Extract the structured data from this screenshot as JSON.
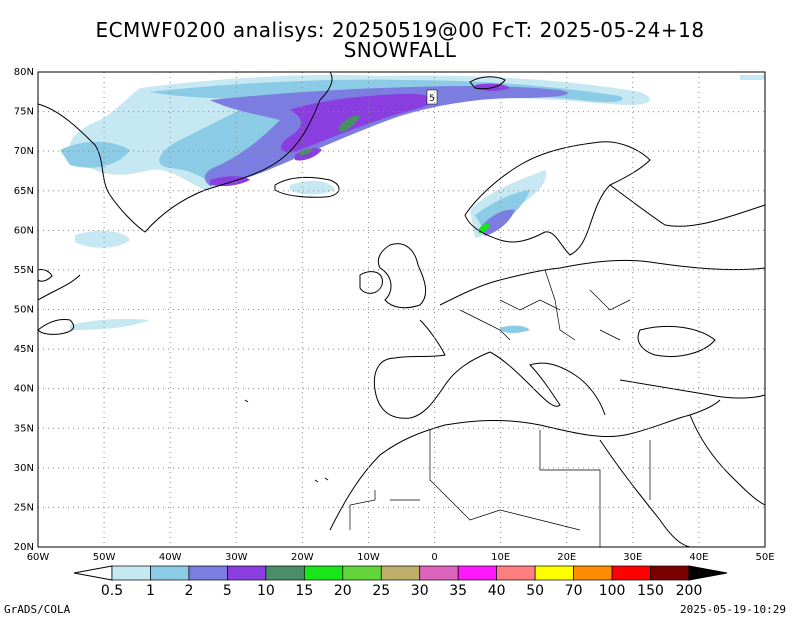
{
  "title": {
    "line1": "ECMWF0200 analisys: 20250519@00 FcT: 2025-05-24+18",
    "line2": "SNOWFALL"
  },
  "map": {
    "lat_labels": [
      "20N",
      "25N",
      "30N",
      "35N",
      "40N",
      "45N",
      "50N",
      "55N",
      "60N",
      "65N",
      "70N",
      "75N",
      "80N"
    ],
    "lon_labels": [
      "60W",
      "50W",
      "40W",
      "30W",
      "20W",
      "10W",
      "0",
      "10E",
      "20E",
      "30E",
      "40E",
      "50E"
    ],
    "extent": {
      "lon_min": -60,
      "lon_max": 50,
      "lat_min": 20,
      "lat_max": 80
    },
    "grid": "dotted",
    "contour_label": "5"
  },
  "colorbar": {
    "levels": [
      "0.5",
      "1",
      "2",
      "5",
      "10",
      "15",
      "20",
      "25",
      "30",
      "35",
      "40",
      "50",
      "70",
      "100",
      "150",
      "200"
    ],
    "colors": [
      "#c6e8f3",
      "#8ccbe6",
      "#7b7de0",
      "#8a3ee0",
      "#4b8c69",
      "#19e619",
      "#63d63c",
      "#bfb069",
      "#dc64bc",
      "#ff19ff",
      "#ff7f7f",
      "#ffff00",
      "#ff8c00",
      "#ff0000",
      "#7a0000"
    ],
    "end_low": "#ffffff",
    "end_high": "#000000"
  },
  "footer": {
    "credit": "GrADS/COLA",
    "timestamp": "2025-05-19-10:29"
  }
}
